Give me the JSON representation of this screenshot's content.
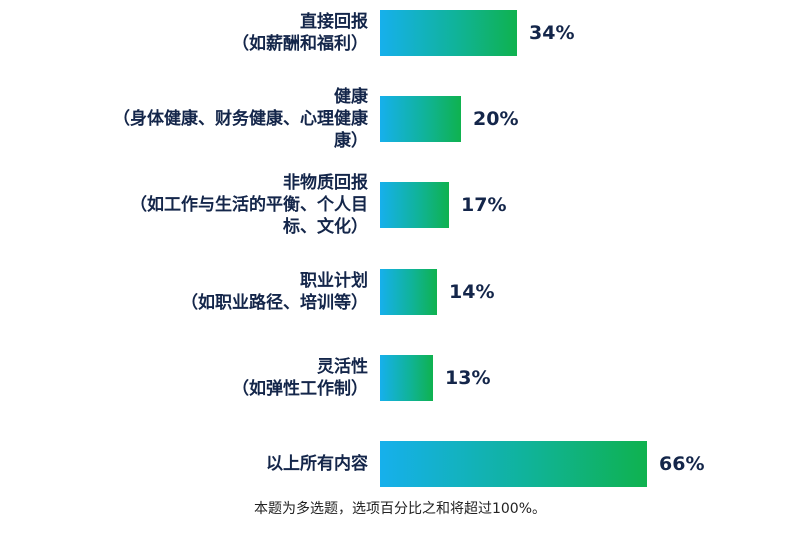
{
  "chart_data": {
    "type": "bar",
    "orientation": "horizontal",
    "categories": [
      [
        "直接回报",
        "（如薪酬和福利）"
      ],
      [
        "健康",
        "（身体健康、财务健康、心理健康",
        "康）"
      ],
      [
        "非物质回报",
        "（如工作与生活的平衡、个人目",
        "标、文化）"
      ],
      [
        "职业计划",
        "（如职业路径、培训等）"
      ],
      [
        "灵活性",
        "（如弹性工作制）"
      ],
      [
        "以上所有内容"
      ]
    ],
    "values": [
      34,
      20,
      17,
      14,
      13,
      66
    ],
    "value_labels": [
      "34%",
      "20%",
      "17%",
      "14%",
      "13%",
      "66%"
    ],
    "bar_colors": {
      "start": "#16b0ec",
      "end": "#0fb24f"
    },
    "xlim": [
      0,
      100
    ],
    "grid": false,
    "legend": false
  },
  "footnote": "本题为多选题，选项百分比之和将超过100%。"
}
